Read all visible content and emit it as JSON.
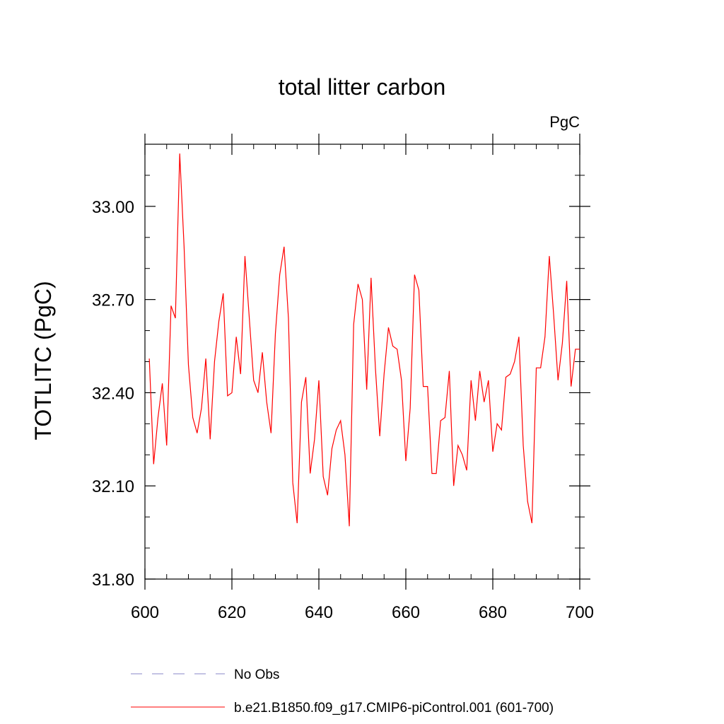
{
  "chart_data": {
    "type": "line",
    "title": "total litter carbon",
    "units_label": "PgC",
    "ylabel": "TOTLITC  (PgC)",
    "xlabel": "",
    "xlim": [
      600,
      700
    ],
    "ylim": [
      31.8,
      33.2
    ],
    "x_ticks": [
      600,
      620,
      640,
      660,
      680,
      700
    ],
    "x_tick_labels": [
      "600",
      "620",
      "640",
      "660",
      "680",
      "700"
    ],
    "y_ticks": [
      31.8,
      32.1,
      32.4,
      32.7,
      33.0
    ],
    "y_tick_labels": [
      "31.80",
      "32.10",
      "32.40",
      "32.70",
      "33.00"
    ],
    "grid": false,
    "legend_position": "bottom",
    "series": [
      {
        "name": "No Obs",
        "color": "#8a87c8",
        "dash": "dashed",
        "x": [],
        "y": []
      },
      {
        "name": "b.e21.B1850.f09_g17.CMIP6-piControl.001 (601-700)",
        "color": "#ff0000",
        "dash": "solid",
        "x": [
          601,
          602,
          603,
          604,
          605,
          606,
          607,
          608,
          609,
          610,
          611,
          612,
          613,
          614,
          615,
          616,
          617,
          618,
          619,
          620,
          621,
          622,
          623,
          624,
          625,
          626,
          627,
          628,
          629,
          630,
          631,
          632,
          633,
          634,
          635,
          636,
          637,
          638,
          639,
          640,
          641,
          642,
          643,
          644,
          645,
          646,
          647,
          648,
          649,
          650,
          651,
          652,
          653,
          654,
          655,
          656,
          657,
          658,
          659,
          660,
          661,
          662,
          663,
          664,
          665,
          666,
          667,
          668,
          669,
          670,
          671,
          672,
          673,
          674,
          675,
          676,
          677,
          678,
          679,
          680,
          681,
          682,
          683,
          684,
          685,
          686,
          687,
          688,
          689,
          690,
          691,
          692,
          693,
          694,
          695,
          696,
          697,
          698,
          699,
          700
        ],
        "y": [
          32.51,
          32.17,
          32.32,
          32.43,
          32.23,
          32.68,
          32.64,
          33.17,
          32.87,
          32.49,
          32.32,
          32.27,
          32.35,
          32.51,
          32.25,
          32.5,
          32.63,
          32.72,
          32.39,
          32.4,
          32.58,
          32.46,
          32.84,
          32.64,
          32.44,
          32.4,
          32.53,
          32.37,
          32.27,
          32.59,
          32.78,
          32.87,
          32.64,
          32.11,
          31.98,
          32.37,
          32.45,
          32.14,
          32.25,
          32.44,
          32.13,
          32.07,
          32.22,
          32.28,
          32.31,
          32.2,
          31.97,
          32.62,
          32.75,
          32.7,
          32.41,
          32.77,
          32.48,
          32.26,
          32.46,
          32.61,
          32.55,
          32.54,
          32.44,
          32.18,
          32.35,
          32.78,
          32.73,
          32.42,
          32.42,
          32.14,
          32.14,
          32.31,
          32.32,
          32.47,
          32.1,
          32.23,
          32.2,
          32.15,
          32.44,
          32.31,
          32.47,
          32.37,
          32.44,
          32.21,
          32.3,
          32.28,
          32.45,
          32.46,
          32.5,
          32.58,
          32.23,
          32.05,
          31.98,
          32.48,
          32.48,
          32.58,
          32.84,
          32.65,
          32.44,
          32.56,
          32.76,
          32.42,
          32.54,
          32.54
        ]
      }
    ]
  }
}
